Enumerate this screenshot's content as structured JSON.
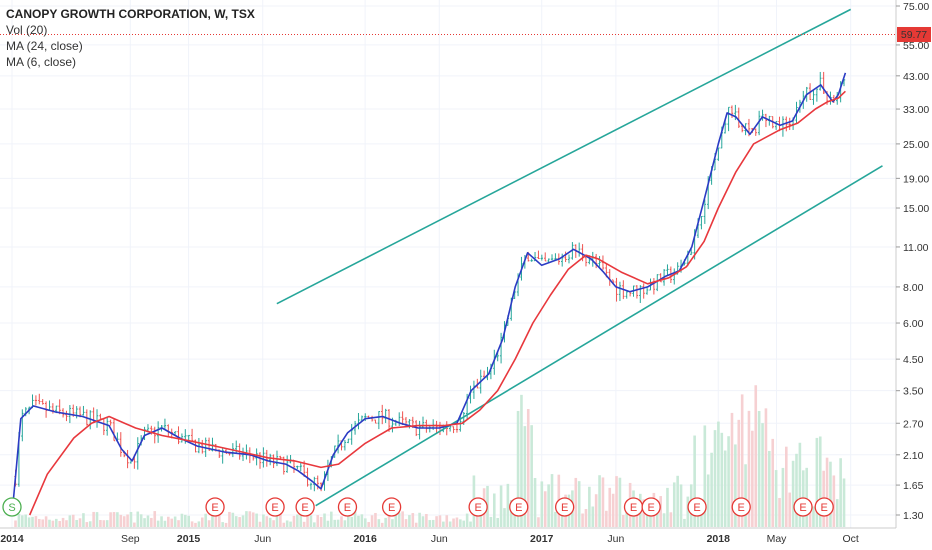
{
  "legend": {
    "title": "CANOPY GROWTH CORPORATION, W, TSX",
    "vol": "Vol (20)",
    "ma_slow": "MA (24, close)",
    "ma_fast": "MA (6, close)"
  },
  "colors": {
    "ma_slow": "#e8383d",
    "ma_fast": "#2b3bc4",
    "channel": "#26a69a",
    "candle_up": "#26a69a",
    "candle_down": "#ef5350",
    "vol_up": "#c9e9d8",
    "vol_down": "#f6d0d2",
    "price_line": "#e53935",
    "marker_earnings": "#e53935",
    "marker_split": "#4caf50"
  },
  "chart_data": {
    "type": "line",
    "x_label_positions_note": "weekly candlesticks with log price axis",
    "x_ticks": [
      "2014",
      "Sep",
      "2015",
      "Jun",
      "2016",
      "Jun",
      "2017",
      "Jun",
      "2018",
      "May",
      "Oct"
    ],
    "y_ticks": [
      "75.00",
      "55.00",
      "43.00",
      "33.00",
      "25.00",
      "19.00",
      "15.00",
      "11.00",
      "8.00",
      "6.00",
      "4.50",
      "3.50",
      "2.70",
      "2.10",
      "1.65",
      "1.30"
    ],
    "y_scale": "log",
    "ylim": [
      1.25,
      78
    ],
    "last_price": "59.77",
    "series": [
      {
        "key": "ma_fast",
        "points": [
          [
            2014.0,
            1.3
          ],
          [
            2014.05,
            2.8
          ],
          [
            2014.12,
            3.1
          ],
          [
            2014.25,
            2.95
          ],
          [
            2014.4,
            2.85
          ],
          [
            2014.55,
            2.65
          ],
          [
            2014.62,
            2.2
          ],
          [
            2014.68,
            2.0
          ],
          [
            2014.75,
            2.45
          ],
          [
            2014.85,
            2.6
          ],
          [
            2014.95,
            2.4
          ],
          [
            2015.05,
            2.25
          ],
          [
            2015.2,
            2.15
          ],
          [
            2015.35,
            2.1
          ],
          [
            2015.45,
            2.0
          ],
          [
            2015.55,
            1.95
          ],
          [
            2015.62,
            1.85
          ],
          [
            2015.7,
            1.7
          ],
          [
            2015.75,
            1.6
          ],
          [
            2015.82,
            2.1
          ],
          [
            2015.9,
            2.5
          ],
          [
            2016.0,
            2.8
          ],
          [
            2016.1,
            2.85
          ],
          [
            2016.2,
            2.7
          ],
          [
            2016.3,
            2.6
          ],
          [
            2016.42,
            2.6
          ],
          [
            2016.52,
            2.7
          ],
          [
            2016.6,
            3.5
          ],
          [
            2016.7,
            4.0
          ],
          [
            2016.78,
            5.3
          ],
          [
            2016.85,
            8.0
          ],
          [
            2016.92,
            10.5
          ],
          [
            2017.0,
            9.5
          ],
          [
            2017.1,
            10.0
          ],
          [
            2017.18,
            10.8
          ],
          [
            2017.28,
            10.0
          ],
          [
            2017.35,
            9.0
          ],
          [
            2017.42,
            8.0
          ],
          [
            2017.5,
            7.7
          ],
          [
            2017.6,
            8.0
          ],
          [
            2017.7,
            8.7
          ],
          [
            2017.78,
            9.1
          ],
          [
            2017.85,
            11.0
          ],
          [
            2017.92,
            16.0
          ],
          [
            2018.0,
            25.0
          ],
          [
            2018.05,
            32.0
          ],
          [
            2018.1,
            31.0
          ],
          [
            2018.18,
            27.0
          ],
          [
            2018.25,
            31.0
          ],
          [
            2018.35,
            29.0
          ],
          [
            2018.42,
            30.0
          ],
          [
            2018.5,
            37.0
          ],
          [
            2018.58,
            40.0
          ],
          [
            2018.62,
            37.0
          ],
          [
            2018.65,
            35.0
          ],
          [
            2018.68,
            37.0
          ],
          [
            2018.72,
            44.0
          ]
        ]
      },
      {
        "key": "ma_slow",
        "points": [
          [
            2014.1,
            1.3
          ],
          [
            2014.2,
            1.8
          ],
          [
            2014.35,
            2.4
          ],
          [
            2014.45,
            2.7
          ],
          [
            2014.55,
            2.85
          ],
          [
            2014.7,
            2.6
          ],
          [
            2014.85,
            2.45
          ],
          [
            2015.0,
            2.35
          ],
          [
            2015.15,
            2.25
          ],
          [
            2015.3,
            2.15
          ],
          [
            2015.45,
            2.05
          ],
          [
            2015.6,
            2.0
          ],
          [
            2015.75,
            1.9
          ],
          [
            2015.85,
            1.95
          ],
          [
            2016.0,
            2.3
          ],
          [
            2016.15,
            2.6
          ],
          [
            2016.3,
            2.65
          ],
          [
            2016.45,
            2.65
          ],
          [
            2016.55,
            2.7
          ],
          [
            2016.65,
            3.0
          ],
          [
            2016.75,
            3.5
          ],
          [
            2016.85,
            4.5
          ],
          [
            2016.95,
            6.0
          ],
          [
            2017.05,
            7.5
          ],
          [
            2017.15,
            9.2
          ],
          [
            2017.25,
            10.3
          ],
          [
            2017.32,
            10.0
          ],
          [
            2017.45,
            9.0
          ],
          [
            2017.6,
            8.2
          ],
          [
            2017.72,
            8.6
          ],
          [
            2017.82,
            9.4
          ],
          [
            2017.92,
            11.5
          ],
          [
            2018.0,
            15.0
          ],
          [
            2018.1,
            20.0
          ],
          [
            2018.2,
            25.0
          ],
          [
            2018.35,
            28.0
          ],
          [
            2018.45,
            29.5
          ],
          [
            2018.55,
            33.0
          ],
          [
            2018.62,
            35.0
          ],
          [
            2018.68,
            36.0
          ],
          [
            2018.72,
            38.0
          ]
        ]
      }
    ],
    "channel_lines": [
      {
        "key": "upper",
        "from": [
          2015.5,
          7.0
        ],
        "to": [
          2018.75,
          73.0
        ]
      },
      {
        "key": "lower",
        "from": [
          2015.72,
          1.4
        ],
        "to": [
          2018.93,
          21.0
        ]
      }
    ],
    "markers": [
      {
        "label": "S",
        "x": 2014.0,
        "kind": "split"
      },
      {
        "label": "E",
        "x": 2015.15,
        "kind": "earnings"
      },
      {
        "label": "E",
        "x": 2015.49,
        "kind": "earnings"
      },
      {
        "label": "E",
        "x": 2015.66,
        "kind": "earnings"
      },
      {
        "label": "E",
        "x": 2015.9,
        "kind": "earnings"
      },
      {
        "label": "E",
        "x": 2016.15,
        "kind": "earnings"
      },
      {
        "label": "E",
        "x": 2016.64,
        "kind": "earnings"
      },
      {
        "label": "E",
        "x": 2016.87,
        "kind": "earnings"
      },
      {
        "label": "E",
        "x": 2017.13,
        "kind": "earnings"
      },
      {
        "label": "E",
        "x": 2017.52,
        "kind": "earnings"
      },
      {
        "label": "E",
        "x": 2017.62,
        "kind": "earnings"
      },
      {
        "label": "E",
        "x": 2017.88,
        "kind": "earnings"
      },
      {
        "label": "E",
        "x": 2018.13,
        "kind": "earnings"
      },
      {
        "label": "E",
        "x": 2018.48,
        "kind": "earnings"
      },
      {
        "label": "E",
        "x": 2018.6,
        "kind": "earnings"
      }
    ]
  }
}
